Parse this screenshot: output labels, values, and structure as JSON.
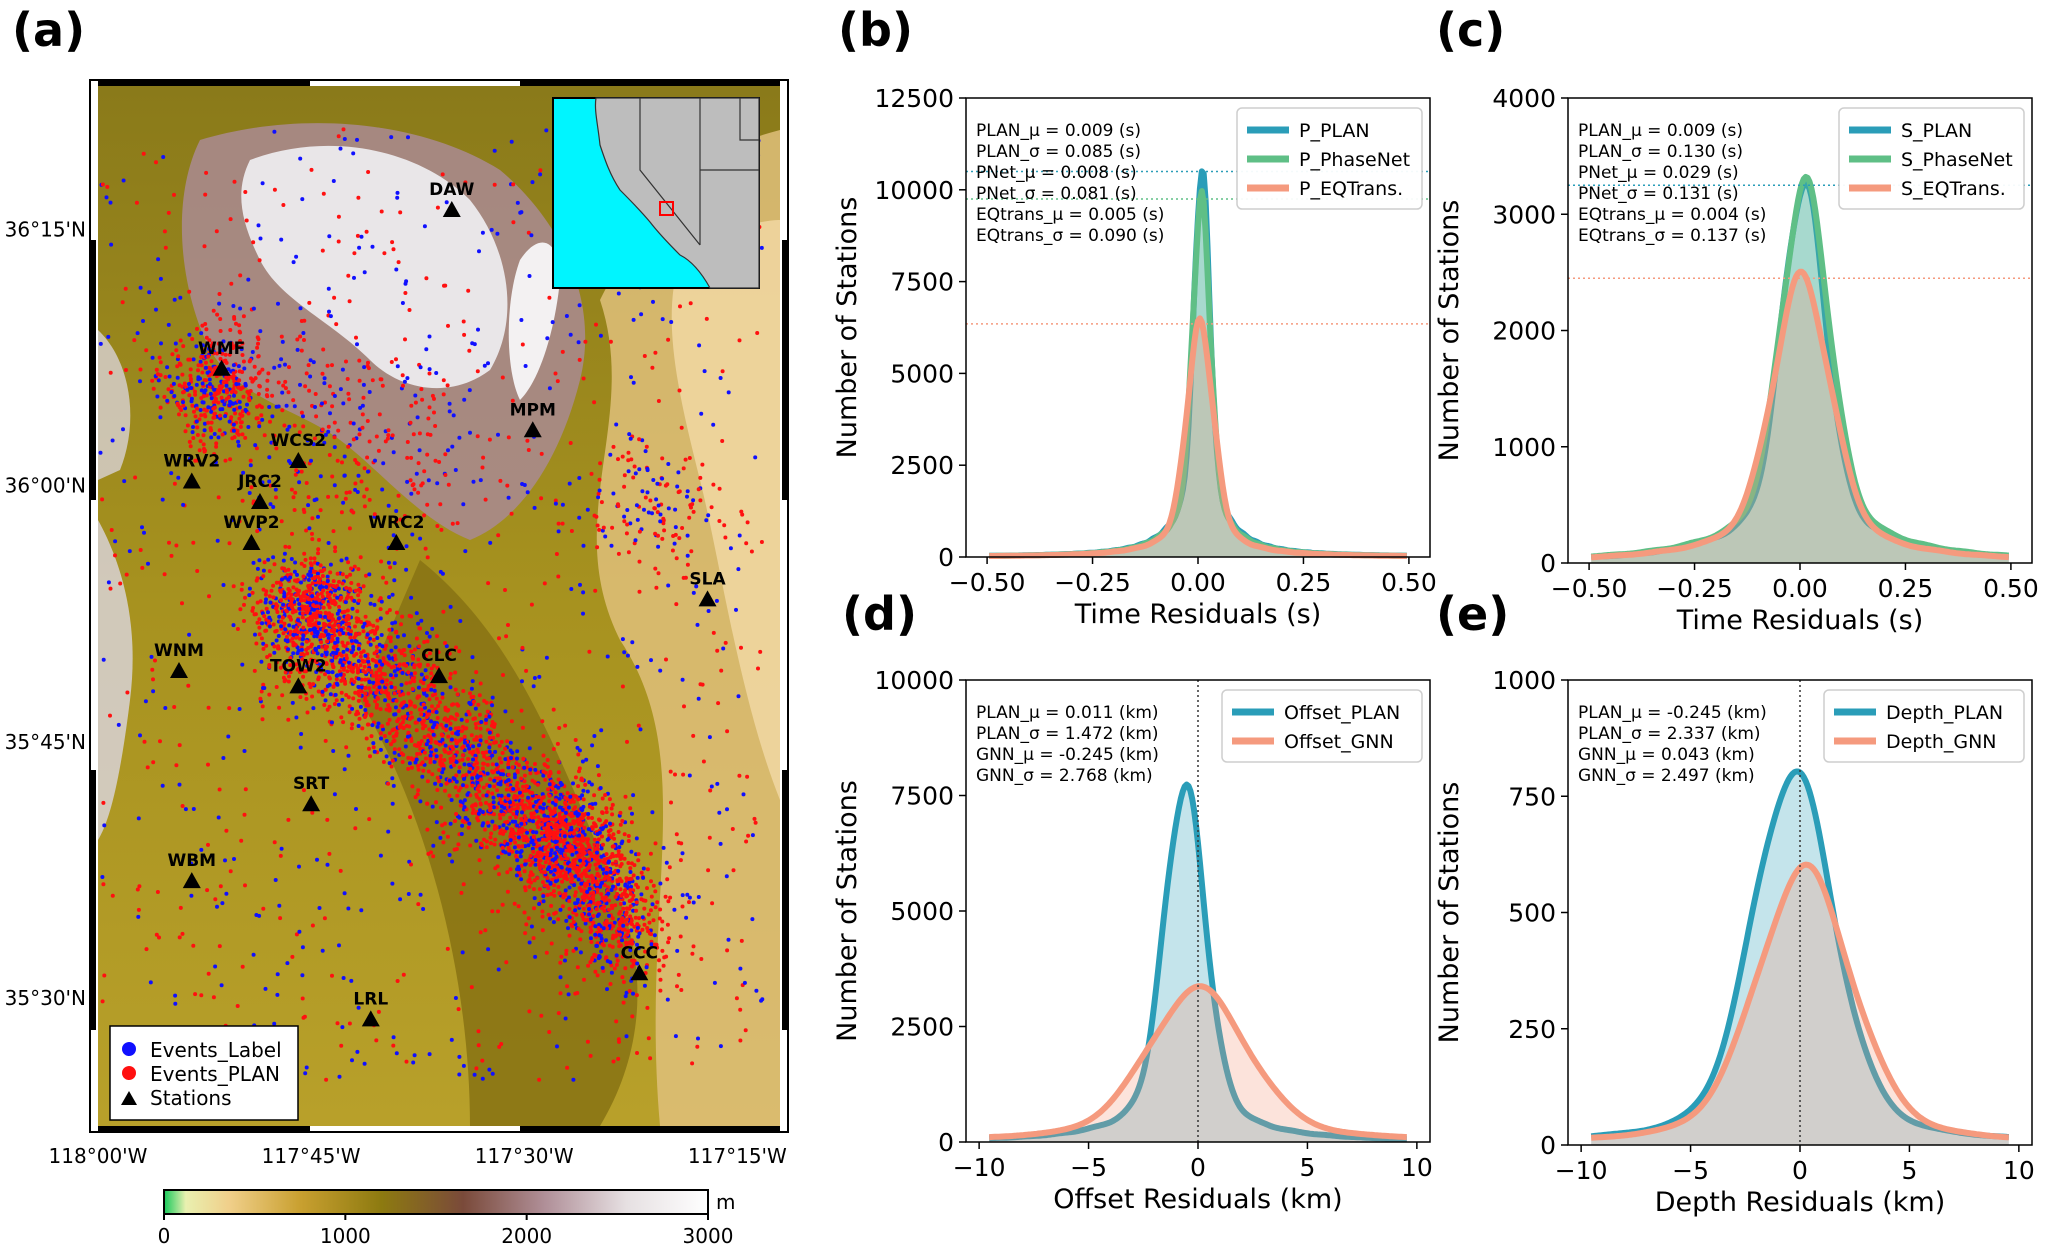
{
  "figure": {
    "panel_labels": [
      "(a)",
      "(b)",
      "(c)",
      "(d)",
      "(e)"
    ]
  },
  "map": {
    "lon_ticks": [
      "118°00'W",
      "117°45'W",
      "117°30'W",
      "117°15'W"
    ],
    "lat_ticks": [
      "36°15'N",
      "36°00'N",
      "35°45'N",
      "35°30'N"
    ],
    "stations": [
      {
        "name": "DAW",
        "lon": -117.585,
        "lat": 36.27
      },
      {
        "name": "WMF",
        "lon": -117.855,
        "lat": 36.115
      },
      {
        "name": "MPM",
        "lon": -117.49,
        "lat": 36.055
      },
      {
        "name": "WCS2",
        "lon": -117.765,
        "lat": 36.025
      },
      {
        "name": "WRV2",
        "lon": -117.89,
        "lat": 36.005
      },
      {
        "name": "JRC2",
        "lon": -117.81,
        "lat": 35.985
      },
      {
        "name": "WVP2",
        "lon": -117.82,
        "lat": 35.945
      },
      {
        "name": "WRC2",
        "lon": -117.65,
        "lat": 35.945
      },
      {
        "name": "SLA",
        "lon": -117.285,
        "lat": 35.89
      },
      {
        "name": "WNM",
        "lon": -117.905,
        "lat": 35.82
      },
      {
        "name": "CLC",
        "lon": -117.6,
        "lat": 35.815
      },
      {
        "name": "TOW2",
        "lon": -117.765,
        "lat": 35.805
      },
      {
        "name": "SRT",
        "lon": -117.75,
        "lat": 35.69
      },
      {
        "name": "WBM",
        "lon": -117.89,
        "lat": 35.615
      },
      {
        "name": "CCC",
        "lon": -117.365,
        "lat": 35.525
      },
      {
        "name": "LRL",
        "lon": -117.68,
        "lat": 35.48
      }
    ],
    "legend": [
      "Events_Label",
      "Events_PLAN",
      "Stations"
    ],
    "colorbar": {
      "unit": "m",
      "ticks": [
        "0",
        "1000",
        "2000",
        "3000"
      ]
    },
    "colors": {
      "label_events": "#1010ff",
      "plan_events": "#ff1010",
      "ocean": "#00f5ff"
    }
  },
  "chart_data": [
    {
      "id": "b",
      "type": "line",
      "xlabel": "Time Residuals (s)",
      "ylabel": "Number of Stations",
      "xlim": [
        -0.55,
        0.55
      ],
      "ylim": [
        0,
        12500
      ],
      "xticks": [
        -0.5,
        -0.25,
        0.0,
        0.25,
        0.5
      ],
      "xtick_labels": [
        "−0.50",
        "−0.25",
        "0.00",
        "0.25",
        "0.50"
      ],
      "yticks": [
        0,
        2500,
        5000,
        7500,
        10000,
        12500
      ],
      "ytick_labels": [
        "0",
        "2500",
        "5000",
        "7500",
        "10000",
        "12500"
      ],
      "stats": [
        "PLAN_μ = 0.009 (s)",
        "PLAN_σ = 0.085 (s)",
        "PNet_μ = 0.008 (s)",
        "PNet_σ = 0.081 (s)",
        "EQtrans_μ = 0.005 (s)",
        "EQtrans_σ = 0.090 (s)"
      ],
      "hlines": [
        {
          "y": 10500,
          "color": "#2a9db8"
        },
        {
          "y": 9750,
          "color": "#5fbf86"
        },
        {
          "y": 6350,
          "color": "#f59a7e"
        }
      ],
      "series": [
        {
          "name": "P_PLAN",
          "color": "#2a9db8",
          "peak": 10500,
          "center": 0.009,
          "width": 0.018,
          "tail": 0.06
        },
        {
          "name": "P_PhaseNet",
          "color": "#5fbf86",
          "peak": 9750,
          "center": 0.008,
          "width": 0.02,
          "tail": 0.06
        },
        {
          "name": "P_EQTrans.",
          "color": "#f59a7e",
          "peak": 6350,
          "center": 0.005,
          "width": 0.03,
          "tail": 0.07
        }
      ]
    },
    {
      "id": "c",
      "type": "line",
      "xlabel": "Time Residuals (s)",
      "ylabel": "Number of Stations",
      "xlim": [
        -0.55,
        0.55
      ],
      "ylim": [
        0,
        4000
      ],
      "xticks": [
        -0.5,
        -0.25,
        0.0,
        0.25,
        0.5
      ],
      "xtick_labels": [
        "−0.50",
        "−0.25",
        "0.00",
        "0.25",
        "0.50"
      ],
      "yticks": [
        0,
        1000,
        2000,
        3000,
        4000
      ],
      "ytick_labels": [
        "0",
        "1000",
        "2000",
        "3000",
        "4000"
      ],
      "stats": [
        "PLAN_μ = 0.009 (s)",
        "PLAN_σ = 0.130 (s)",
        "PNet_μ = 0.029 (s)",
        "PNet_σ = 0.131 (s)",
        "EQtrans_μ = 0.004 (s)",
        "EQtrans_σ = 0.137 (s)"
      ],
      "hlines": [
        {
          "y": 3250,
          "color": "#2a9db8"
        },
        {
          "y": 2450,
          "color": "#f59a7e"
        }
      ],
      "series": [
        {
          "name": "S_PLAN",
          "color": "#2a9db8",
          "peak": 3250,
          "center": 0.009,
          "width": 0.05,
          "tail": 0.14
        },
        {
          "name": "S_PhaseNet",
          "color": "#5fbf86",
          "peak": 3250,
          "center": 0.012,
          "width": 0.055,
          "tail": 0.15
        },
        {
          "name": "S_EQTrans.",
          "color": "#f59a7e",
          "peak": 2450,
          "center": 0.004,
          "width": 0.065,
          "tail": 0.16
        }
      ]
    },
    {
      "id": "d",
      "type": "line",
      "xlabel": "Offset Residuals (km)",
      "ylabel": "Number of Stations",
      "xlim": [
        -10.6,
        10.6
      ],
      "ylim": [
        0,
        10000
      ],
      "xticks": [
        -10,
        -5,
        0,
        5,
        10
      ],
      "xtick_labels": [
        "−10",
        "−5",
        "0",
        "5",
        "10"
      ],
      "yticks": [
        0,
        2500,
        5000,
        7500,
        10000
      ],
      "ytick_labels": [
        "0",
        "2500",
        "5000",
        "7500",
        "10000"
      ],
      "stats": [
        "PLAN_μ = 0.011 (km)",
        "PLAN_σ = 1.472 (km)",
        "GNN_μ = -0.245 (km)",
        "GNN_σ = 2.768 (km)"
      ],
      "vline": 0,
      "series": [
        {
          "name": "Offset_PLAN",
          "color": "#2a9db8",
          "peak": 7700,
          "center": -0.6,
          "width": 0.9,
          "tail": 2.0
        },
        {
          "name": "Offset_GNN",
          "color": "#f59a7e",
          "peak": 3300,
          "center": 0.0,
          "width": 2.2,
          "tail": 4.0
        }
      ]
    },
    {
      "id": "e",
      "type": "line",
      "xlabel": "Depth Residuals (km)",
      "ylabel": "Number of Stations",
      "xlim": [
        -10.6,
        10.6
      ],
      "ylim": [
        0,
        1000
      ],
      "xticks": [
        -10,
        -5,
        0,
        5,
        10
      ],
      "xtick_labels": [
        "−10",
        "−5",
        "0",
        "5",
        "10"
      ],
      "yticks": [
        0,
        250,
        500,
        750,
        1000
      ],
      "ytick_labels": [
        "0",
        "250",
        "500",
        "750",
        "1000"
      ],
      "stats": [
        "PLAN_μ = -0.245 (km)",
        "PLAN_σ = 2.337 (km)",
        "GNN_μ = 0.043 (km)",
        "GNN_σ = 2.497 (km)"
      ],
      "vline": 0,
      "series": [
        {
          "name": "Depth_PLAN",
          "color": "#2a9db8",
          "peak": 800,
          "center": -0.3,
          "width": 1.8,
          "tail": 3.2
        },
        {
          "name": "Depth_GNN",
          "color": "#f59a7e",
          "peak": 590,
          "center": 0.2,
          "width": 2.1,
          "tail": 3.6
        }
      ]
    }
  ]
}
